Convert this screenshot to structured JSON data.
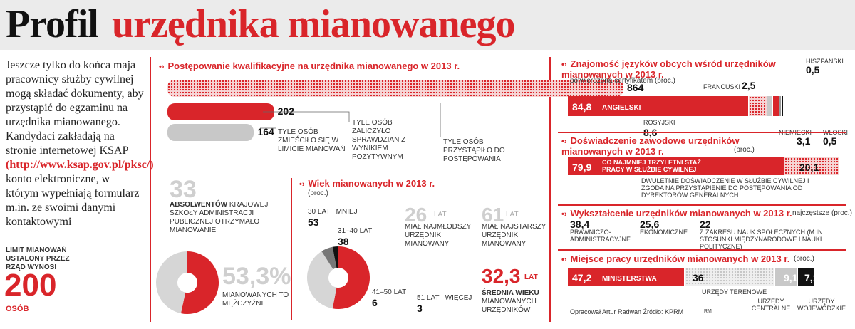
{
  "header": {
    "title_black": "Profil",
    "title_red": "urzędnika mianowanego"
  },
  "intro": {
    "text_before": "Jeszcze tylko do końca maja pracownicy służby cywilnej mogą składać dokumenty, aby przystąpić do egzaminu na urzędnika mianowanego. Kandydaci zakładają na stronie internetowej KSAP",
    "link": "(http://www.ksap.gov.pl/pksc/)",
    "text_after": "konto elektroniczne, w którym wypełniają formularz m.in. ze swoimi danymi kontaktowymi"
  },
  "limit": {
    "label": "LIMIT MIANOWAŃ USTALONY PRZEZ RZĄD WYNOSI",
    "value": "200",
    "unit": "OSÓB"
  },
  "colors": {
    "red": "#d9252a",
    "grey": "#c8c8c8",
    "black": "#111111",
    "dotted_red": "#e8a0a0"
  },
  "qualification": {
    "title": "Postępowanie kwalifikacyjne na urzędnika mianowanego w 2013 r.",
    "captions": [
      "TYLE OSÓB ZMIEŚCIŁO SIĘ W LIMICIE MIANOWAŃ",
      "TYLE OSÓB ZALICZYŁO SPRAWDZIAN Z WYNIKIEM POZYTYWNYM",
      "TYLE OSÓB PRZYSTĄPIŁO DO POSTĘPOWANIA"
    ]
  },
  "ksap": {
    "value": "33",
    "label_bold": "ABSOLWENTÓW",
    "label_rest": "KRAJOWEJ SZKOŁY ADMINISTRACJI PUBLICZNEJ OTRZYMAŁO MIANOWANIE"
  },
  "gender": {
    "value": "53,3%",
    "label": "MIANOWANYCH TO MĘŻCZYŹNI"
  },
  "age": {
    "title": "Wiek mianowanych w 2013 r.",
    "unit": "(proc.)",
    "youngest": {
      "value": "26",
      "unit": "LAT",
      "label": "MIAŁ NAJMŁODSZY URZĘDNIK MIANOWANY"
    },
    "oldest": {
      "value": "61",
      "unit": "LAT",
      "label": "MIAŁ NAJSTARSZY URZĘDNIK MIANOWANY"
    },
    "average": {
      "value": "32,3",
      "unit": "LAT",
      "label_bold": "ŚREDNIA WIEKU",
      "label": "MIANOWANYCH URZĘDNIKÓW"
    }
  },
  "languages": {
    "title": "Znajomość języków obcych wśród urzędników mianowanych w 2013 r.",
    "subtitle": "potwierdzona certyfikatem (proc.)"
  },
  "experience": {
    "title": "Doświadczenie zawodowe urzędników mianowanych w 2013 r.",
    "unit": "(proc.)",
    "caption": "DWULETNIE DOŚWIADCZENIE W SŁUŻBIE CYWILNEJ I ZGODA NA PRZYSTĄPIENIE DO POSTĘPOWANIA OD DYREKTORÓW GENERALNYCH"
  },
  "education": {
    "title": "Wykształcenie urzędników mianowanych w 2013 r.",
    "subtitle": "najczęstsze (proc.)"
  },
  "workplace": {
    "title": "Miejsce pracy urzędników mianowanych w 2013 r.",
    "unit": "(proc.)"
  },
  "footer": {
    "source": "Opracował Artur Radwan  Źródło: KPRM",
    "initials": "RM"
  },
  "chart_data": [
    {
      "type": "bar",
      "title": "Postępowanie kwalifikacyjne na urzędnika mianowanego w 2013 r.",
      "categories": [
        "TYLE OSÓB PRZYSTĄPIŁO DO POSTĘPOWANIA",
        "TYLE OSÓB ZALICZYŁO SPRAWDZIAN Z WYNIKIEM POZYTYWNYM",
        "TYLE OSÓB ZMIEŚCIŁO SIĘ W LIMICIE MIANOWAŃ"
      ],
      "values": [
        864,
        202,
        164
      ]
    },
    {
      "type": "pie",
      "title": "",
      "categories": [
        "MIANOWANYCH TO MĘŻCZYŹNI",
        ""
      ],
      "values": [
        53.3,
        46.7
      ]
    },
    {
      "type": "pie",
      "title": "Wiek mianowanych w 2013 r.",
      "categories": [
        "30 LAT I MNIEJ",
        "31–40 LAT",
        "41–50 LAT",
        "51 LAT I WIĘCEJ"
      ],
      "values": [
        53,
        38,
        6,
        3
      ]
    },
    {
      "type": "bar",
      "title": "Znajomość języków obcych wśród urzędników mianowanych w 2013 r.",
      "categories": [
        "ANGIELSKI",
        "ROSYJSKI",
        "FRANCUSKI",
        "NIEMIECKI",
        "HISZPAŃSKI",
        "WŁOSKI"
      ],
      "values": [
        84.8,
        8.6,
        2.5,
        3.1,
        0.5,
        0.5
      ]
    },
    {
      "type": "bar",
      "title": "Doświadczenie zawodowe urzędników mianowanych w 2013 r.",
      "categories": [
        "CO NAJMNIEJ TRZYLETNI STAŻ PRACY W SŁUŻBIE CYWILNEJ",
        "DWULETNIE DOŚWIADCZENIE W SŁUŻBIE CYWILNEJ I ZGODA NA PRZYSTĄPIENIE DO POSTĘPOWANIA OD DYREKTORÓW GENERALNYCH"
      ],
      "values": [
        79.9,
        20.1
      ]
    },
    {
      "type": "table",
      "title": "Wykształcenie urzędników mianowanych w 2013 r.",
      "categories": [
        "PRAWNICZO-ADMINISTRACYJNE",
        "EKONOMICZNE",
        "Z ZAKRESU NAUK SPOŁECZNYCH (m.in. stosunki międzynarodowe i nauki polityczne)"
      ],
      "values": [
        38.4,
        25.6,
        22.0
      ]
    },
    {
      "type": "bar",
      "title": "Miejsce pracy urzędników mianowanych w 2013 r.",
      "categories": [
        "MINISTERSTWA",
        "URZĘDY TERENOWE",
        "URZĘDY CENTRALNE",
        "URZĘDY WOJEWÓDZKIE"
      ],
      "values": [
        47.2,
        36.0,
        9.1,
        7.1
      ]
    }
  ]
}
